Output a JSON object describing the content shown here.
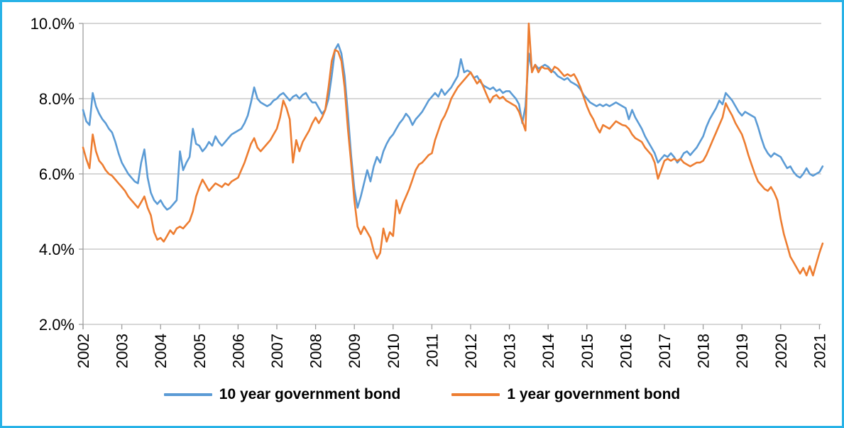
{
  "chart": {
    "border_color": "#27b2e7",
    "background_color": "#ffffff",
    "gridline_color": "#bfbfbf",
    "axis_color": "#9e9e9e"
  },
  "chart_data": {
    "type": "line",
    "title": "",
    "xlabel": "",
    "ylabel": "",
    "grid": true,
    "legend_position": "bottom",
    "y_axis": {
      "min": 2.0,
      "max": 10.0,
      "tick_values": [
        10,
        8,
        6,
        4,
        2
      ],
      "tick_labels": [
        "10.0%",
        "8.0%",
        "6.0%",
        "4.0%",
        "2.0%"
      ]
    },
    "x_axis": {
      "tick_labels": [
        "2002",
        "2003",
        "2004",
        "2005",
        "2006",
        "2007",
        "2008",
        "2009",
        "2010",
        "2011",
        "2012",
        "2013",
        "2014",
        "2015",
        "2016",
        "2017",
        "2018",
        "2019",
        "2020",
        "2021"
      ],
      "label_rotation_deg": -90,
      "start_year": 2002.0,
      "step_years": 0.083333,
      "end_year": 2021.08
    },
    "series": [
      {
        "name": "10 year government bond",
        "color": "#5b9bd5",
        "values": [
          7.7,
          7.4,
          7.3,
          8.15,
          7.8,
          7.6,
          7.45,
          7.35,
          7.2,
          7.1,
          6.85,
          6.55,
          6.3,
          6.15,
          6.0,
          5.9,
          5.8,
          5.75,
          6.3,
          6.65,
          5.9,
          5.5,
          5.3,
          5.2,
          5.3,
          5.15,
          5.05,
          5.1,
          5.2,
          5.3,
          6.6,
          6.1,
          6.3,
          6.45,
          7.2,
          6.8,
          6.75,
          6.6,
          6.7,
          6.85,
          6.75,
          7.0,
          6.85,
          6.75,
          6.85,
          6.95,
          7.05,
          7.1,
          7.15,
          7.2,
          7.35,
          7.55,
          7.9,
          8.3,
          8.0,
          7.9,
          7.85,
          7.8,
          7.85,
          7.95,
          8.0,
          8.1,
          8.15,
          8.05,
          7.95,
          8.05,
          8.1,
          8.0,
          8.1,
          8.15,
          8.0,
          7.9,
          7.9,
          7.75,
          7.6,
          7.7,
          8.0,
          8.6,
          9.3,
          9.45,
          9.2,
          8.6,
          7.6,
          6.5,
          5.6,
          5.1,
          5.4,
          5.75,
          6.1,
          5.8,
          6.2,
          6.45,
          6.3,
          6.6,
          6.8,
          6.95,
          7.05,
          7.2,
          7.35,
          7.45,
          7.6,
          7.5,
          7.3,
          7.45,
          7.55,
          7.65,
          7.8,
          7.95,
          8.05,
          8.15,
          8.05,
          8.25,
          8.1,
          8.2,
          8.3,
          8.45,
          8.6,
          9.05,
          8.7,
          8.75,
          8.7,
          8.55,
          8.6,
          8.45,
          8.35,
          8.3,
          8.25,
          8.3,
          8.2,
          8.25,
          8.15,
          8.2,
          8.2,
          8.1,
          8.0,
          7.85,
          7.35,
          7.8,
          9.2,
          8.75,
          8.9,
          8.8,
          8.85,
          8.9,
          8.85,
          8.75,
          8.7,
          8.6,
          8.55,
          8.5,
          8.55,
          8.45,
          8.4,
          8.35,
          8.25,
          8.1,
          8.0,
          7.9,
          7.85,
          7.8,
          7.85,
          7.8,
          7.85,
          7.8,
          7.85,
          7.9,
          7.85,
          7.8,
          7.75,
          7.45,
          7.7,
          7.5,
          7.35,
          7.2,
          7.0,
          6.85,
          6.7,
          6.55,
          6.3,
          6.4,
          6.5,
          6.45,
          6.55,
          6.45,
          6.3,
          6.4,
          6.55,
          6.6,
          6.5,
          6.6,
          6.7,
          6.85,
          7.0,
          7.25,
          7.45,
          7.6,
          7.75,
          7.95,
          7.85,
          8.15,
          8.05,
          7.95,
          7.8,
          7.65,
          7.55,
          7.65,
          7.6,
          7.55,
          7.5,
          7.25,
          6.95,
          6.7,
          6.55,
          6.45,
          6.55,
          6.5,
          6.45,
          6.3,
          6.15,
          6.2,
          6.05,
          5.95,
          5.9,
          6.0,
          6.15,
          6.0,
          5.95,
          6.0,
          6.05,
          6.2
        ]
      },
      {
        "name": "1 year government bond",
        "color": "#ed7d31",
        "values": [
          6.7,
          6.4,
          6.15,
          7.05,
          6.6,
          6.35,
          6.25,
          6.1,
          6.0,
          5.95,
          5.85,
          5.75,
          5.65,
          5.55,
          5.4,
          5.3,
          5.2,
          5.1,
          5.25,
          5.4,
          5.1,
          4.9,
          4.45,
          4.25,
          4.3,
          4.2,
          4.35,
          4.5,
          4.4,
          4.55,
          4.6,
          4.55,
          4.65,
          4.75,
          5.0,
          5.4,
          5.65,
          5.85,
          5.7,
          5.55,
          5.65,
          5.75,
          5.7,
          5.65,
          5.75,
          5.7,
          5.8,
          5.85,
          5.9,
          6.1,
          6.3,
          6.55,
          6.8,
          6.95,
          6.7,
          6.6,
          6.7,
          6.8,
          6.9,
          7.05,
          7.2,
          7.5,
          7.95,
          7.75,
          7.45,
          6.3,
          6.9,
          6.6,
          6.85,
          7.0,
          7.15,
          7.35,
          7.5,
          7.35,
          7.5,
          7.7,
          8.3,
          9.0,
          9.3,
          9.25,
          9.0,
          8.3,
          7.2,
          6.3,
          5.3,
          4.6,
          4.4,
          4.6,
          4.45,
          4.3,
          3.95,
          3.75,
          3.9,
          4.55,
          4.2,
          4.45,
          4.35,
          5.3,
          4.95,
          5.2,
          5.4,
          5.6,
          5.85,
          6.1,
          6.25,
          6.3,
          6.4,
          6.5,
          6.55,
          6.9,
          7.15,
          7.4,
          7.55,
          7.75,
          8.0,
          8.15,
          8.3,
          8.4,
          8.5,
          8.6,
          8.7,
          8.55,
          8.4,
          8.5,
          8.3,
          8.1,
          7.9,
          8.05,
          8.1,
          8.0,
          8.05,
          7.95,
          7.9,
          7.85,
          7.8,
          7.65,
          7.4,
          7.15,
          10.0,
          8.7,
          8.9,
          8.7,
          8.85,
          8.8,
          8.8,
          8.7,
          8.85,
          8.8,
          8.7,
          8.6,
          8.65,
          8.6,
          8.65,
          8.5,
          8.3,
          8.05,
          7.8,
          7.6,
          7.45,
          7.25,
          7.1,
          7.3,
          7.25,
          7.2,
          7.3,
          7.4,
          7.35,
          7.3,
          7.28,
          7.2,
          7.05,
          6.95,
          6.9,
          6.85,
          6.7,
          6.6,
          6.5,
          6.3,
          5.87,
          6.1,
          6.35,
          6.4,
          6.35,
          6.4,
          6.35,
          6.4,
          6.3,
          6.25,
          6.2,
          6.25,
          6.3,
          6.3,
          6.35,
          6.5,
          6.7,
          6.9,
          7.1,
          7.3,
          7.5,
          7.88,
          7.7,
          7.55,
          7.35,
          7.2,
          7.05,
          6.8,
          6.5,
          6.25,
          6.0,
          5.8,
          5.7,
          5.6,
          5.55,
          5.65,
          5.5,
          5.3,
          4.8,
          4.4,
          4.1,
          3.8,
          3.65,
          3.5,
          3.35,
          3.5,
          3.3,
          3.55,
          3.3,
          3.6,
          3.9,
          4.15
        ]
      }
    ]
  }
}
